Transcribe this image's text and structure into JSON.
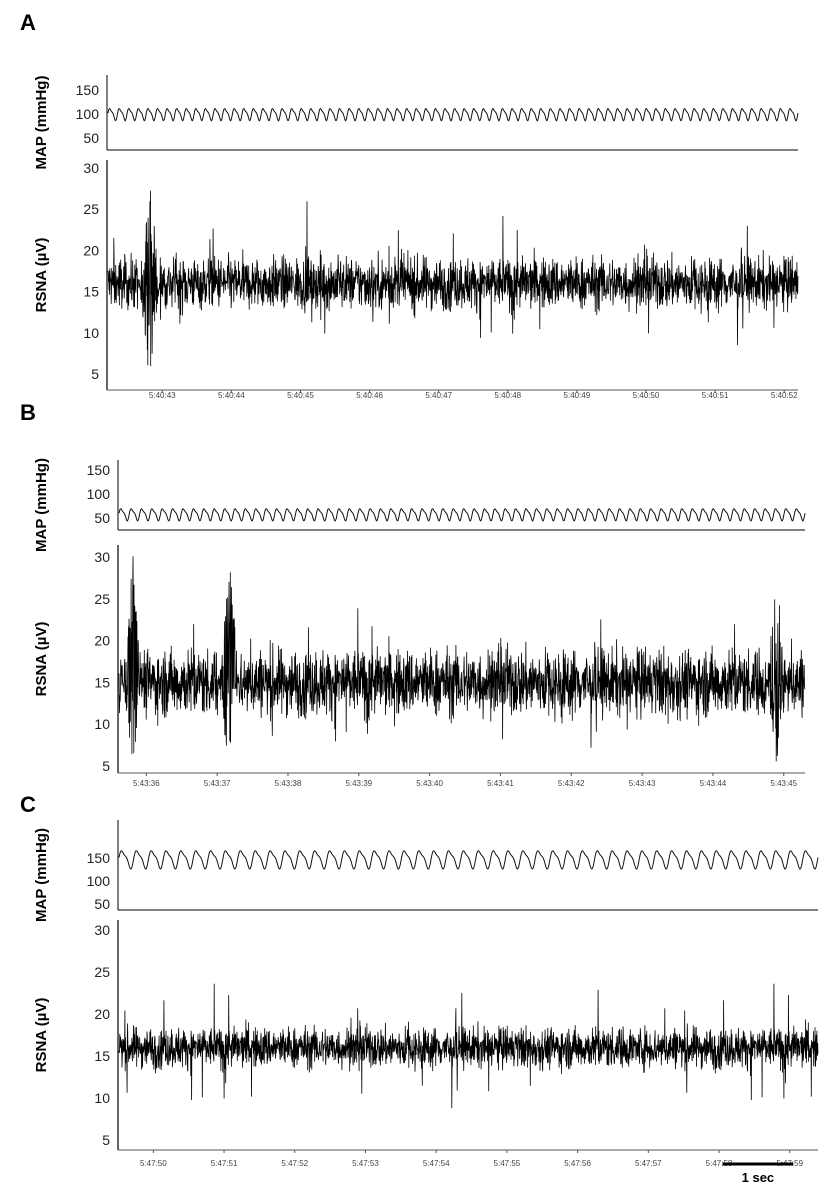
{
  "chart_data": [
    {
      "type": "line",
      "panel": "A",
      "map": {
        "ylabel": "MAP (mmHg)",
        "yticks": [
          150,
          100,
          50
        ],
        "mean": 100,
        "amplitude": 14,
        "cycles": 72
      },
      "rsna": {
        "ylabel": "RSNA (µV)",
        "yticks": [
          30,
          25,
          20,
          15,
          10,
          5
        ],
        "mean": 16,
        "noise": 2.2,
        "bursts": [
          {
            "t": 42.8,
            "peak": 30,
            "trough": 4
          }
        ]
      },
      "time_start": 42.2,
      "time_end": 52.2,
      "time_labels": [
        "5:40:43",
        "5:40:44",
        "5:40:45",
        "5:40:46",
        "5:40:47",
        "5:40:48",
        "5:40:49",
        "5:40:50",
        "5:40:51",
        "5:40:52"
      ],
      "time_values": [
        43,
        44,
        45,
        46,
        47,
        48,
        49,
        50,
        51,
        52
      ]
    },
    {
      "type": "line",
      "panel": "B",
      "map": {
        "ylabel": "MAP (mmHg)",
        "yticks": [
          150,
          100,
          50
        ],
        "mean": 58,
        "amplitude": 14,
        "cycles": 66
      },
      "rsna": {
        "ylabel": "RSNA (µV)",
        "yticks": [
          30,
          25,
          20,
          15,
          10,
          5
        ],
        "mean": 15,
        "noise": 2.8,
        "bursts": [
          {
            "t": 35.8,
            "peak": 31,
            "trough": 5
          },
          {
            "t": 37.15,
            "peak": 31,
            "trough": 5
          },
          {
            "t": 44.9,
            "peak": 28,
            "trough": 5
          }
        ]
      },
      "time_start": 35.6,
      "time_end": 45.3,
      "time_labels": [
        "5:43:36",
        "5:43:37",
        "5:43:38",
        "5:43:39",
        "5:43:40",
        "5:43:41",
        "5:43:42",
        "5:43:43",
        "5:43:44",
        "5:43:45"
      ],
      "time_values": [
        36,
        37,
        38,
        39,
        40,
        41,
        42,
        43,
        44,
        45
      ]
    },
    {
      "type": "line",
      "panel": "C",
      "map": {
        "ylabel": "MAP (mmHg)",
        "yticks": [
          150,
          100,
          50
        ],
        "mean": 148,
        "amplitude": 22,
        "cycles": 47
      },
      "rsna": {
        "ylabel": "RSNA (µV)",
        "yticks": [
          30,
          25,
          20,
          15,
          10,
          5
        ],
        "mean": 16,
        "noise": 1.7,
        "bursts": []
      },
      "time_start": 49.5,
      "time_end": 59.4,
      "time_labels": [
        "5:47:50",
        "5:47:51",
        "5:47:52",
        "5:47:53",
        "5:47:54",
        "5:47:55",
        "5:47:56",
        "5:47:57",
        "5:47:58",
        "5:47:59"
      ],
      "time_values": [
        50,
        51,
        52,
        53,
        54,
        55,
        56,
        57,
        58,
        59
      ],
      "scale_bar": {
        "label": "1 sec",
        "seconds": 1
      }
    }
  ]
}
